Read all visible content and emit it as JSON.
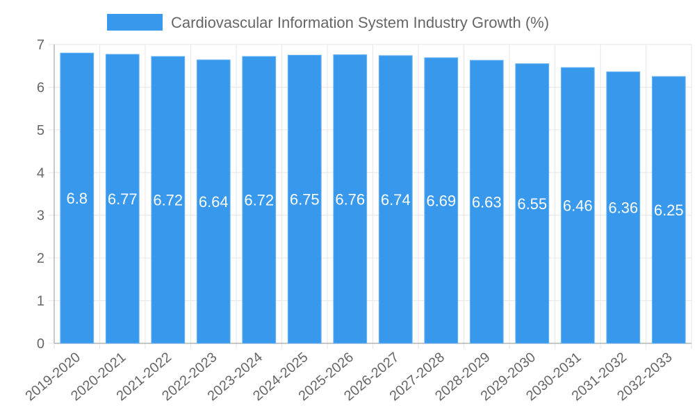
{
  "colors": {
    "bar": "#3899ec",
    "bar_border": "#6db4f2"
  },
  "chart_data": {
    "type": "bar",
    "title": "",
    "xlabel": "",
    "ylabel": "",
    "categories": [
      "2019-2020",
      "2020-2021",
      "2021-2022",
      "2022-2023",
      "2023-2024",
      "2024-2025",
      "2025-2026",
      "2026-2027",
      "2027-2028",
      "2028-2029",
      "2029-2030",
      "2030-2031",
      "2031-2032",
      "2032-2033"
    ],
    "series": [
      {
        "name": "Cardiovascular Information System Industry Growth (%)",
        "values": [
          6.8,
          6.77,
          6.72,
          6.64,
          6.72,
          6.75,
          6.76,
          6.74,
          6.69,
          6.63,
          6.55,
          6.46,
          6.36,
          6.25
        ]
      }
    ],
    "data_labels": [
      "6.8",
      "6.77",
      "6.72",
      "6.64",
      "6.72",
      "6.75",
      "6.76",
      "6.74",
      "6.69",
      "6.63",
      "6.55",
      "6.46",
      "6.36",
      "6.25"
    ],
    "ylim": [
      0,
      7
    ],
    "yticks": [
      "0",
      "1",
      "2",
      "3",
      "4",
      "5",
      "6",
      "7"
    ],
    "grid": true,
    "legend_position": "top-center"
  }
}
